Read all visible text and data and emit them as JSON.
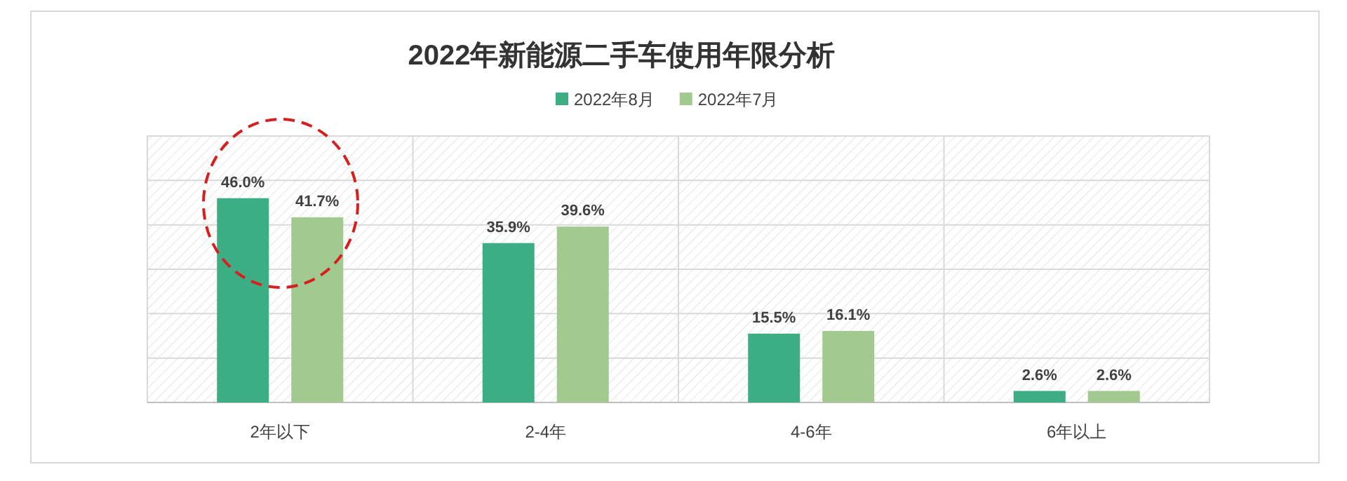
{
  "chart_data": {
    "type": "bar",
    "title": "2022年新能源二手车使用年限分析",
    "categories": [
      "2年以下",
      "2-4年",
      "4-6年",
      "6年以上"
    ],
    "series": [
      {
        "name": "2022年8月",
        "color": "#3dae84",
        "values": [
          46.0,
          35.9,
          15.5,
          2.6
        ],
        "value_labels": [
          "46.0%",
          "35.9%",
          "15.5%",
          "2.6%"
        ]
      },
      {
        "name": "2022年7月",
        "color": "#a2c98f",
        "values": [
          41.7,
          39.6,
          16.1,
          2.6
        ],
        "value_labels": [
          "41.7%",
          "39.6%",
          "16.1%",
          "2.6%"
        ]
      }
    ],
    "ylim": [
      0,
      60
    ],
    "yticks": [
      {
        "value": 0,
        "label": null
      },
      {
        "value": 10,
        "label": null
      },
      {
        "value": 20,
        "label": null
      },
      {
        "value": 30,
        "label": null
      },
      {
        "value": 40,
        "label": null
      },
      {
        "value": 50,
        "label": null
      },
      {
        "value": 60,
        "label": null
      }
    ],
    "grid": true,
    "legend": "top",
    "tick_labels": "x"
  }
}
